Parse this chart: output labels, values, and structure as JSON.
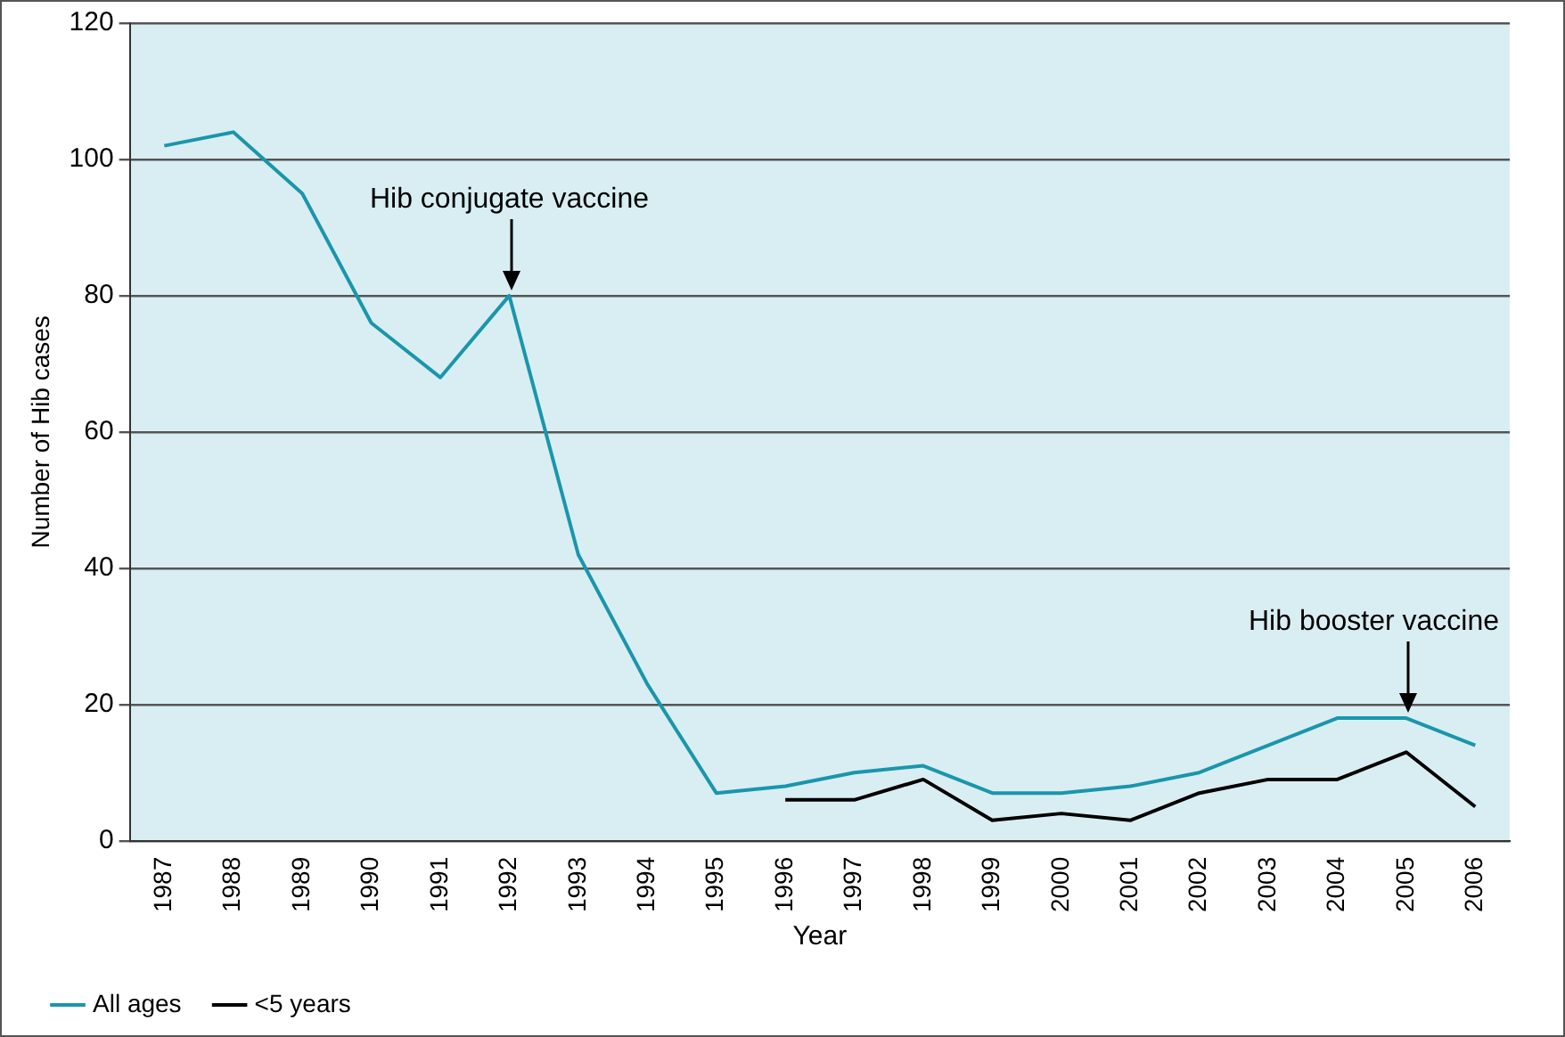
{
  "chart_data": {
    "type": "line",
    "xlabel": "Year",
    "ylabel": "Number of Hib cases",
    "categories": [
      "1987",
      "1988",
      "1989",
      "1990",
      "1991",
      "1992",
      "1993",
      "1994",
      "1995",
      "1996",
      "1997",
      "1998",
      "1999",
      "2000",
      "2001",
      "2002",
      "2003",
      "2004",
      "2005",
      "2006"
    ],
    "series": [
      {
        "name": "All ages",
        "color": "#1a96ac",
        "values": [
          102,
          104,
          95,
          76,
          68,
          80,
          42,
          23,
          7,
          8,
          10,
          11,
          7,
          7,
          8,
          10,
          14,
          18,
          18,
          14
        ]
      },
      {
        "name": "<5 years",
        "color": "#000000",
        "values": [
          null,
          null,
          null,
          null,
          null,
          null,
          null,
          null,
          null,
          6,
          6,
          9,
          3,
          4,
          3,
          7,
          9,
          9,
          13,
          5
        ]
      }
    ],
    "ylim": [
      0,
      120
    ],
    "yticks": [
      0,
      20,
      40,
      60,
      80,
      100,
      120
    ],
    "grid": "y",
    "legend": "bottom left",
    "marker": "none",
    "line_style": "solid",
    "annotations": [
      {
        "text": "Hib conjugate vaccine",
        "x": "1992",
        "y": 80
      },
      {
        "text": "Hib booster vaccine",
        "x": "2005",
        "y": 18
      }
    ]
  }
}
